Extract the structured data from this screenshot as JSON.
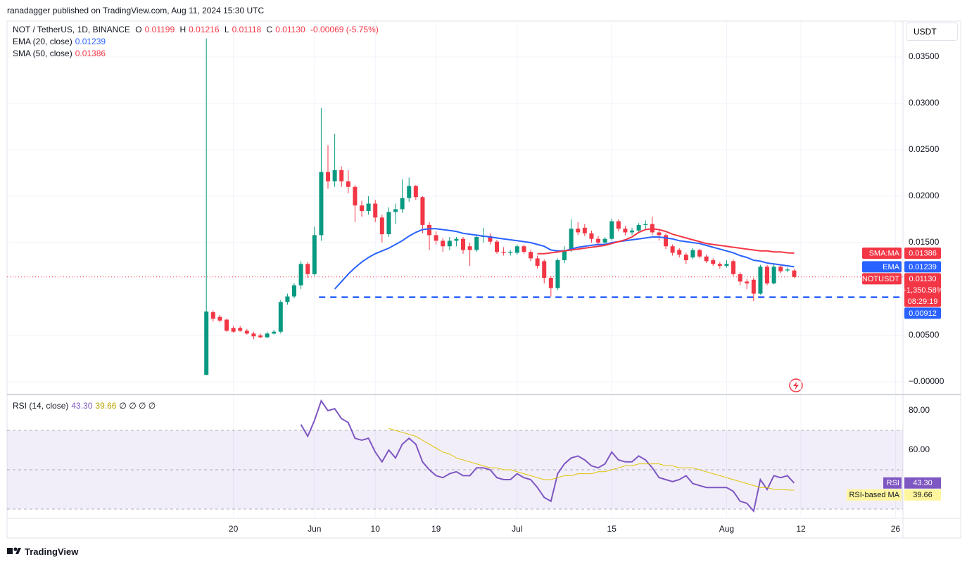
{
  "header": {
    "published": "ranadagger published on TradingView.com, Aug 11, 2024 15:30 UTC",
    "brand": "TradingView",
    "currency": "USDT"
  },
  "chart_data": [
    {
      "type": "candlestick",
      "title": "NOT / TetherUS, 1D, BINANCE",
      "ohlc_labels": [
        "O",
        "H",
        "L",
        "C"
      ],
      "ohlc_values": [
        "0.01199",
        "0.01216",
        "0.01118",
        "0.01130"
      ],
      "change": "-0.00069 (-5.75%)",
      "up_color": "#089981",
      "down_color": "#f23645",
      "x": [
        0,
        1,
        2,
        3,
        4,
        5,
        6,
        7,
        8,
        9,
        10,
        11,
        12,
        13,
        14,
        15,
        16,
        17,
        18,
        19,
        20,
        21,
        22,
        23,
        24,
        25,
        26,
        27,
        28,
        29,
        30,
        31,
        32,
        33,
        34,
        35,
        36,
        37,
        38,
        39,
        40,
        41,
        42,
        43,
        44,
        45,
        46,
        47,
        48,
        49,
        50,
        51,
        52,
        53,
        54,
        55,
        56,
        57,
        58,
        59,
        60,
        61,
        62,
        63,
        64,
        65,
        66,
        67,
        68,
        69,
        70,
        71,
        72,
        73,
        74,
        75,
        76,
        77,
        78,
        79,
        80,
        81,
        82,
        83,
        84,
        85,
        86,
        87
      ],
      "open": [
        0.00076,
        0.0075,
        0.007,
        0.0067,
        0.0058,
        0.0058,
        0.0055,
        0.0052,
        0.005,
        0.0048,
        0.0052,
        0.0054,
        0.0086,
        0.0092,
        0.0104,
        0.0127,
        0.0116,
        0.0158,
        0.0226,
        0.0216,
        0.0228,
        0.0216,
        0.021,
        0.019,
        0.0184,
        0.0192,
        0.0177,
        0.0159,
        0.0183,
        0.0186,
        0.0198,
        0.0211,
        0.0199,
        0.0169,
        0.0158,
        0.0152,
        0.0146,
        0.0152,
        0.0154,
        0.0146,
        0.0142,
        0.0156,
        0.0157,
        0.0151,
        0.014,
        0.0139,
        0.0139,
        0.0146,
        0.014,
        0.0133,
        0.013,
        0.0112,
        0.0101,
        0.0131,
        0.0142,
        0.0165,
        0.0166,
        0.016,
        0.0154,
        0.015,
        0.0154,
        0.0173,
        0.0165,
        0.0161,
        0.0163,
        0.0169,
        0.017,
        0.0161,
        0.0158,
        0.0146,
        0.0142,
        0.0137,
        0.0134,
        0.0142,
        0.0135,
        0.0131,
        0.0127,
        0.0125,
        0.013,
        0.0116,
        0.0108,
        0.011,
        0.0095,
        0.0124,
        0.0106,
        0.0124,
        0.012,
        0.01199
      ],
      "high": [
        0.037,
        0.0077,
        0.0072,
        0.0068,
        0.006,
        0.006,
        0.0057,
        0.0054,
        0.0052,
        0.0054,
        0.0056,
        0.0088,
        0.0095,
        0.0106,
        0.013,
        0.0129,
        0.0167,
        0.0295,
        0.0255,
        0.0267,
        0.0232,
        0.0228,
        0.0212,
        0.0195,
        0.02,
        0.0196,
        0.018,
        0.0188,
        0.0192,
        0.0218,
        0.022,
        0.0212,
        0.02,
        0.0172,
        0.0162,
        0.0155,
        0.0156,
        0.0156,
        0.0156,
        0.015,
        0.0158,
        0.0166,
        0.016,
        0.0153,
        0.0145,
        0.0142,
        0.0148,
        0.0148,
        0.0142,
        0.0136,
        0.0132,
        0.0114,
        0.0133,
        0.0146,
        0.0175,
        0.0172,
        0.017,
        0.0163,
        0.0157,
        0.0156,
        0.0176,
        0.0175,
        0.0168,
        0.0166,
        0.0171,
        0.0174,
        0.0178,
        0.0164,
        0.016,
        0.0148,
        0.0144,
        0.0139,
        0.0144,
        0.0143,
        0.0137,
        0.0133,
        0.0129,
        0.0131,
        0.0132,
        0.0118,
        0.0111,
        0.0112,
        0.0126,
        0.0126,
        0.0127,
        0.0126,
        0.0123,
        0.01216
      ],
      "low": [
        0.0007,
        0.0065,
        0.0064,
        0.0054,
        0.0053,
        0.0054,
        0.0051,
        0.0046,
        0.0047,
        0.0047,
        0.0051,
        0.0052,
        0.0083,
        0.009,
        0.01,
        0.0112,
        0.0114,
        0.0152,
        0.0208,
        0.021,
        0.021,
        0.0203,
        0.0172,
        0.0178,
        0.018,
        0.0172,
        0.015,
        0.0156,
        0.017,
        0.0182,
        0.0194,
        0.0196,
        0.016,
        0.0142,
        0.0148,
        0.014,
        0.0142,
        0.0146,
        0.0138,
        0.0125,
        0.014,
        0.015,
        0.0148,
        0.0138,
        0.0136,
        0.0136,
        0.0137,
        0.0138,
        0.013,
        0.0122,
        0.0106,
        0.0092,
        0.0099,
        0.0128,
        0.014,
        0.0158,
        0.0157,
        0.015,
        0.0148,
        0.0147,
        0.0152,
        0.0162,
        0.0158,
        0.0158,
        0.016,
        0.0164,
        0.0158,
        0.0152,
        0.0143,
        0.0136,
        0.0134,
        0.0127,
        0.0132,
        0.0133,
        0.0128,
        0.0125,
        0.0122,
        0.0123,
        0.0114,
        0.0104,
        0.01,
        0.0087,
        0.0094,
        0.0104,
        0.0105,
        0.0117,
        0.0118,
        0.01118
      ],
      "close": [
        0.00758,
        0.0068,
        0.0066,
        0.0055,
        0.0054,
        0.0055,
        0.0052,
        0.0049,
        0.0048,
        0.0052,
        0.0054,
        0.0086,
        0.0092,
        0.0104,
        0.0127,
        0.0116,
        0.0158,
        0.0226,
        0.0216,
        0.0228,
        0.0216,
        0.021,
        0.019,
        0.0184,
        0.0192,
        0.0177,
        0.0159,
        0.0183,
        0.0186,
        0.0198,
        0.0211,
        0.0199,
        0.0169,
        0.0158,
        0.0152,
        0.0146,
        0.0152,
        0.0154,
        0.0142,
        0.0142,
        0.0156,
        0.0157,
        0.0151,
        0.014,
        0.0139,
        0.014,
        0.0146,
        0.014,
        0.0133,
        0.0125,
        0.0112,
        0.0101,
        0.0131,
        0.0142,
        0.0165,
        0.0161,
        0.016,
        0.0154,
        0.015,
        0.0154,
        0.0173,
        0.0165,
        0.0161,
        0.0163,
        0.0169,
        0.017,
        0.0161,
        0.0158,
        0.0146,
        0.0139,
        0.0137,
        0.0131,
        0.0142,
        0.0135,
        0.013,
        0.0127,
        0.0125,
        0.0127,
        0.0116,
        0.0108,
        0.0106,
        0.0095,
        0.0124,
        0.0106,
        0.0124,
        0.0119,
        0.0121,
        0.0113
      ],
      "close_tag": "NOTUSDT",
      "close_label": "0.01130",
      "change_label": "+1,350.58%",
      "countdown": "08:29:19",
      "series": [
        {
          "name": "EMA (20, close)",
          "tag": "EMA",
          "color": "#2962ff",
          "values": [
            null,
            null,
            null,
            null,
            null,
            null,
            null,
            null,
            null,
            null,
            null,
            null,
            null,
            null,
            null,
            null,
            null,
            null,
            null,
            0.01,
            0.0108,
            0.0116,
            0.0123,
            0.0129,
            0.0134,
            0.0138,
            0.0141,
            0.0144,
            0.0148,
            0.0152,
            0.0157,
            0.0161,
            0.0164,
            0.0165,
            0.0165,
            0.0164,
            0.0163,
            0.0162,
            0.016,
            0.0159,
            0.0158,
            0.0157,
            0.0156,
            0.0155,
            0.0154,
            0.0153,
            0.0152,
            0.0151,
            0.015,
            0.0148,
            0.0146,
            0.0142,
            0.0141,
            0.0141,
            0.0143,
            0.0145,
            0.0146,
            0.0147,
            0.0148,
            0.0148,
            0.015,
            0.0151,
            0.0152,
            0.0153,
            0.0154,
            0.0155,
            0.0156,
            0.0156,
            0.0155,
            0.0154,
            0.0152,
            0.0151,
            0.015,
            0.0149,
            0.0147,
            0.0145,
            0.0143,
            0.0141,
            0.0139,
            0.0136,
            0.0134,
            0.0131,
            0.013,
            0.0128,
            0.0127,
            0.0126,
            0.0125,
            0.01239
          ]
        },
        {
          "name": "SMA (50, close)",
          "tag": "SMA:MA",
          "color": "#f23645",
          "values": [
            null,
            null,
            null,
            null,
            null,
            null,
            null,
            null,
            null,
            null,
            null,
            null,
            null,
            null,
            null,
            null,
            null,
            null,
            null,
            null,
            null,
            null,
            null,
            null,
            null,
            null,
            null,
            null,
            null,
            null,
            null,
            null,
            null,
            null,
            null,
            null,
            null,
            null,
            null,
            null,
            null,
            null,
            null,
            null,
            null,
            null,
            null,
            null,
            null,
            0.0138,
            0.0138,
            0.0139,
            0.014,
            0.0141,
            0.0142,
            0.0143,
            0.0144,
            0.0145,
            0.0146,
            0.0147,
            0.0149,
            0.0151,
            0.0153,
            0.0156,
            0.0161,
            0.0164,
            0.0165,
            0.0164,
            0.0162,
            0.0159,
            0.0157,
            0.0155,
            0.0153,
            0.0151,
            0.0149,
            0.0148,
            0.0147,
            0.0146,
            0.0145,
            0.0144,
            0.0143,
            0.0142,
            0.0141,
            0.0141,
            0.014,
            0.014,
            0.0139,
            0.01386
          ]
        }
      ],
      "support": {
        "value": 0.00912,
        "color": "#2962ff"
      },
      "ylim": [
        -0.00129,
        0.03886
      ],
      "yticks": [
        {
          "value": 0.035,
          "label": "0.03500"
        },
        {
          "value": 0.03,
          "label": "0.03000"
        },
        {
          "value": 0.025,
          "label": "0.02500"
        },
        {
          "value": 0.02,
          "label": "0.02000"
        },
        {
          "value": 0.015,
          "label": "0.01500"
        },
        {
          "value": 0.005,
          "label": "0.00500"
        },
        {
          "value": 0,
          "label": "−0.00000"
        }
      ],
      "xlim": [
        -29.5,
        103.1
      ],
      "xticks": [
        {
          "value": 4,
          "label": "20"
        },
        {
          "value": 16,
          "label": "Jun"
        },
        {
          "value": 25,
          "label": "10"
        },
        {
          "value": 34,
          "label": "19"
        },
        {
          "value": 46,
          "label": "Jul"
        },
        {
          "value": 60,
          "label": "15"
        },
        {
          "value": 77,
          "label": "Aug"
        },
        {
          "value": 88,
          "label": "12"
        },
        {
          "value": 102,
          "label": "26"
        }
      ],
      "grid": true
    },
    {
      "type": "line",
      "title": "RSI (14, close)",
      "legend_extra": "∅ ∅ ∅ ∅",
      "series": [
        {
          "name": "RSI",
          "color": "#7e57c2",
          "last_label": "43.30",
          "values": [
            null,
            null,
            null,
            null,
            null,
            null,
            null,
            null,
            null,
            null,
            null,
            null,
            null,
            null,
            73,
            67,
            75,
            85,
            80,
            81,
            76,
            74,
            66,
            65,
            66,
            59,
            54,
            60,
            56,
            63,
            66,
            63,
            54,
            50,
            47,
            46,
            48,
            49,
            47,
            47,
            51,
            51,
            50,
            46,
            45,
            45,
            48,
            46,
            45,
            41,
            36,
            34,
            48,
            53,
            56,
            57,
            55,
            52,
            51,
            53,
            59,
            55,
            54,
            54,
            57,
            55,
            51,
            46,
            45,
            44,
            45,
            47,
            43,
            42,
            41,
            41,
            41,
            41,
            39,
            34,
            33,
            29,
            45,
            40,
            47,
            46,
            47,
            43.3
          ]
        },
        {
          "name": "RSI-based MA",
          "color": "#e0c300",
          "values": [
            null,
            null,
            null,
            null,
            null,
            null,
            null,
            null,
            null,
            null,
            null,
            null,
            null,
            null,
            null,
            null,
            null,
            null,
            null,
            null,
            null,
            null,
            null,
            null,
            null,
            null,
            null,
            71,
            70,
            69,
            68,
            67,
            65,
            63,
            61,
            59,
            58,
            56,
            55,
            54,
            53,
            52,
            51,
            51,
            50,
            50,
            49,
            48,
            47,
            46,
            45,
            45,
            46,
            47,
            47,
            48,
            48,
            48,
            49,
            49,
            50,
            51,
            52,
            52,
            53,
            53,
            53,
            53,
            52,
            52,
            51,
            51,
            51,
            50,
            49,
            48,
            47,
            46,
            45,
            44,
            43,
            42,
            41,
            41,
            40,
            40,
            39.7,
            39.66
          ]
        }
      ],
      "band": [
        30,
        70
      ],
      "midline": 50,
      "ylim": [
        25.36,
        87.5
      ],
      "yticks": [
        {
          "value": 80,
          "label": "80.00"
        },
        {
          "value": 60,
          "label": "60.00"
        }
      ]
    }
  ]
}
